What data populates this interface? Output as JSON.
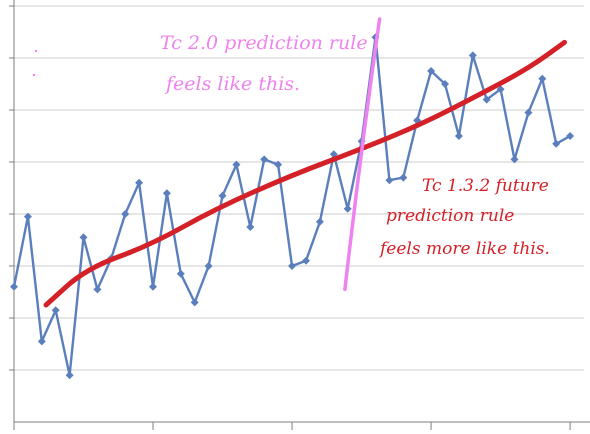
{
  "chart_data": {
    "type": "line",
    "title": "",
    "xlabel": "",
    "ylabel": "",
    "grid": true,
    "xlim": [
      0,
      41
    ],
    "ylim": [
      0,
      8
    ],
    "series": [
      {
        "values": [
          2.6,
          3.95,
          1.55,
          2.15,
          0.9,
          3.55,
          2.55,
          3.15,
          4.0,
          4.6,
          2.6,
          4.4,
          2.85,
          2.3,
          3.0,
          4.35,
          4.95,
          3.75,
          5.05,
          4.95,
          3.0,
          3.1,
          3.85,
          5.15,
          4.1,
          5.4,
          7.4,
          4.65,
          4.7,
          5.8,
          6.75,
          6.5,
          5.5,
          7.05,
          6.2,
          6.4,
          5.05,
          5.95,
          6.6,
          5.35,
          5.5
        ],
        "color": "#5b7fbd"
      }
    ],
    "trend": {
      "x": [
        2.3,
        5.2,
        9.8,
        14.5,
        20.0,
        25.0,
        29.5,
        33.5,
        37.0,
        39.6
      ],
      "y": [
        2.25,
        2.95,
        3.4,
        4.1,
        4.75,
        5.25,
        5.75,
        6.3,
        6.8,
        7.3
      ],
      "color": "#d42027"
    },
    "pink_stroke": {
      "x": [
        23.8,
        26.3
      ],
      "y": [
        2.55,
        7.75
      ],
      "color": "#ee82ee"
    }
  },
  "annotations": {
    "pink_lines": [
      "Tc 2.0 prediction rule",
      "feels like this."
    ],
    "red_lines": [
      "Tc 1.3.2 future",
      "prediction rule",
      "feels more like this."
    ]
  },
  "colors": {
    "pink": "#ee82ee",
    "red": "#d42027",
    "grid": "#cccccc",
    "axis": "#7f7f7f"
  }
}
